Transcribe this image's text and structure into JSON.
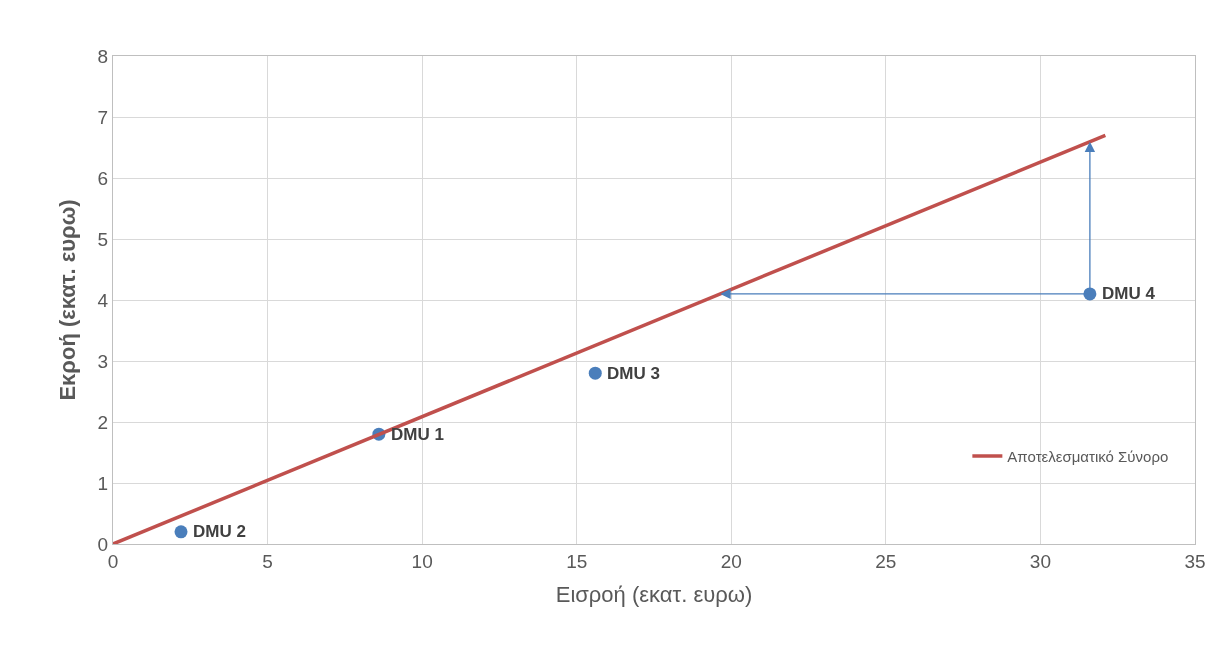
{
  "chart_data": {
    "type": "scatter",
    "xlabel": "Εισροή (εκατ. ευρω)",
    "ylabel": "Εκροή (εκατ. ευρω)",
    "xlim": [
      0,
      35
    ],
    "xticks": [
      0,
      5,
      10,
      15,
      20,
      25,
      30,
      35
    ],
    "ylim": [
      0,
      8
    ],
    "yticks": [
      0,
      1,
      2,
      3,
      4,
      5,
      6,
      7,
      8
    ],
    "grid": true,
    "legend": "bottom right",
    "series": [
      {
        "marker": "circle",
        "color": "#4a7ebb",
        "x": [
          8.6,
          2.2,
          15.6,
          31.6
        ],
        "values": [
          1.8,
          0.2,
          2.8,
          4.1
        ]
      },
      {
        "type": "line",
        "marker": "none",
        "name": "Αποτελεσματικό Σύνορο",
        "color": "#c0504d",
        "x": [
          0,
          32.1
        ],
        "values": [
          0,
          6.7
        ]
      }
    ],
    "annotations": [
      {
        "text": "DMU 1",
        "x": 8.6,
        "y": 1.8
      },
      {
        "text": "DMU 2",
        "x": 2.2,
        "y": 0.2
      },
      {
        "text": "DMU 3",
        "x": 15.6,
        "y": 2.8
      },
      {
        "text": "DMU 4",
        "x": 31.6,
        "y": 4.1
      }
    ]
  }
}
